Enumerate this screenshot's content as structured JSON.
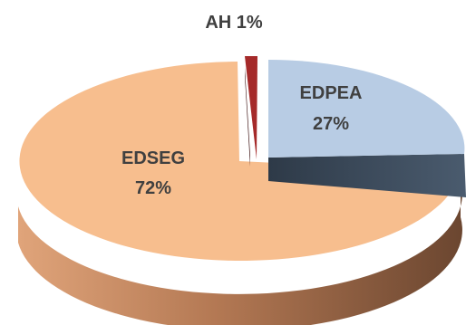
{
  "chart_data": {
    "type": "pie",
    "style": "3d-exploded",
    "slices": [
      {
        "label": "EDPEA",
        "value": 27,
        "pct_text": "27%",
        "color": "#B8CCE4",
        "color_dark": "#3B4A5C"
      },
      {
        "label": "AH",
        "value": 1,
        "pct_text": "1%",
        "color": "#A52A2A",
        "color_dark": "#5A1414"
      },
      {
        "label": "EDSEG",
        "value": 72,
        "pct_text": "72%",
        "color": "#F7BE8E",
        "color_dark": "#8B5A3C"
      }
    ],
    "labels": {
      "edpea": "EDPEA",
      "edpea_pct": "27%",
      "ah": "AH 1%",
      "edseg": "EDSEG",
      "edseg_pct": "72%"
    },
    "label_color": "#404040",
    "legend": "none"
  }
}
